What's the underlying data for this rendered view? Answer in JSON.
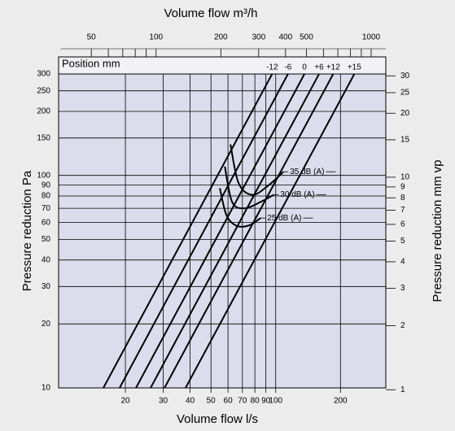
{
  "chart_data": {
    "type": "line",
    "title": "Volume flow m³/h",
    "x_label": "Volume flow l/s",
    "y_label": "Pressure reduction Pa",
    "y2_label": "Pressure reduction mm vp",
    "series_label": "Position mm",
    "xlog": true,
    "ylog": true,
    "grid": true,
    "xlim": [
      10,
      325
    ],
    "xticks": [
      20,
      30,
      40,
      50,
      60,
      70,
      80,
      90,
      100,
      200
    ],
    "ylim": [
      10,
      300
    ],
    "yticks": [
      300,
      250,
      200,
      150,
      100,
      90,
      80,
      70,
      60,
      50,
      40,
      30,
      20,
      10
    ],
    "y2lim": [
      1.02,
      30.6
    ],
    "y2ticks": [
      30,
      25,
      20,
      15,
      10,
      9,
      8,
      7,
      6,
      5,
      4,
      3,
      2,
      1
    ],
    "x2lim": [
      36,
      1170
    ],
    "x2ticks": [
      50,
      100,
      200,
      300,
      400,
      500,
      1000
    ],
    "x2minorticks": [
      60,
      70,
      80,
      90,
      600,
      700,
      800,
      900
    ],
    "color": "#000000",
    "series": [
      {
        "name": "-12",
        "x": [
          15.8,
          96.2
        ],
        "values": [
          10,
          300
        ]
      },
      {
        "name": "-6",
        "x": [
          18.8,
          114
        ],
        "values": [
          10,
          300
        ]
      },
      {
        "name": "0",
        "x": [
          22.4,
          136
        ],
        "values": [
          10,
          300
        ]
      },
      {
        "name": "+6",
        "x": [
          26.2,
          159
        ],
        "values": [
          10,
          300
        ]
      },
      {
        "name": "+12",
        "x": [
          30.4,
          185
        ],
        "values": [
          10,
          300
        ]
      },
      {
        "name": "+15",
        "x": [
          38.1,
          232
        ],
        "values": [
          10,
          300
        ]
      }
    ],
    "curves": [
      {
        "name": "35 dB (A)",
        "x": [
          61.6,
          67.2,
          78,
          92.8,
          108.6
        ],
        "values": [
          140,
          92,
          81,
          90,
          104
        ]
      },
      {
        "name": "30 dB (A)",
        "x": [
          58,
          62.7,
          71.5,
          85.1,
          97.9
        ],
        "values": [
          110,
          75,
          70,
          75,
          81
        ]
      },
      {
        "name": "25 dB (A)",
        "x": [
          55,
          59,
          65.5,
          74.6,
          85.1
        ],
        "values": [
          87,
          65,
          58,
          58,
          63
        ]
      }
    ]
  }
}
